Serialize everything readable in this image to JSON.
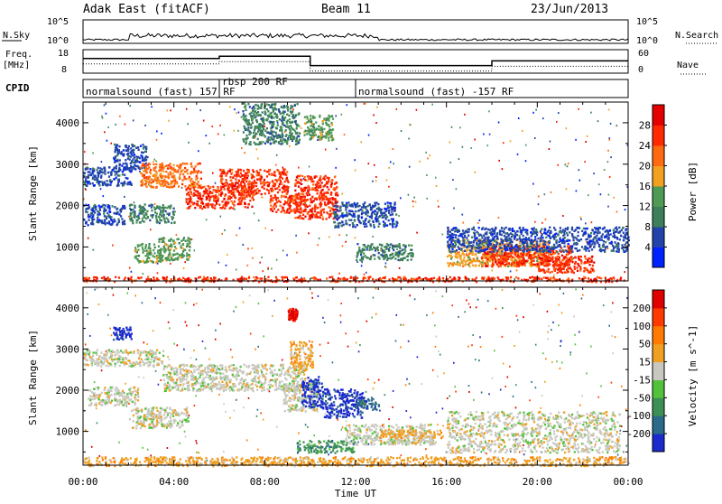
{
  "header": {
    "title": "Adak East (fitACF)",
    "beam": "Beam 11",
    "date": "23/Jun/2013"
  },
  "top_panels": {
    "nsky_label": "N.Sky",
    "nsky_ticks": [
      "10^5",
      "10^0"
    ],
    "nsearch_label": "N.Search",
    "nsearch_ticks": [
      "10^5",
      "10^0"
    ],
    "freq_label": "Freq.",
    "freq_unit": "[MHz]",
    "freq_ticks": [
      "18",
      "8"
    ],
    "nave_label": "Nave",
    "nave_ticks": [
      "60",
      "0"
    ],
    "cpid_label": "CPID",
    "cpid_segments": [
      {
        "label": "normalsound (fast) 157 RF",
        "start_hour": 0,
        "end_hour": 6
      },
      {
        "label": "rbsp 200 RF",
        "start_hour": 6,
        "end_hour": 12
      },
      {
        "label": "normalsound (fast) -157 RF",
        "start_hour": 12,
        "end_hour": 24
      }
    ],
    "freq_steps": [
      {
        "start": 0,
        "end": 6,
        "mhz": 15
      },
      {
        "start": 6,
        "end": 10,
        "mhz": 16
      },
      {
        "start": 10,
        "end": 18,
        "mhz": 12
      },
      {
        "start": 18,
        "end": 24,
        "mhz": 14
      }
    ]
  },
  "chart_data": [
    {
      "type": "heatmap",
      "name": "power",
      "ylabel": "Slant Range [km]",
      "xlabel": "Time UT",
      "xlim_hours": [
        0,
        24
      ],
      "ylim_km": [
        180,
        4500
      ],
      "x_ticks": [
        "00:00",
        "04:00",
        "08:00",
        "12:00",
        "16:00",
        "20:00",
        "00:00"
      ],
      "y_ticks": [
        1000,
        2000,
        3000,
        4000
      ],
      "colorbar": {
        "label": "Power [dB]",
        "ticks": [
          "4",
          "8",
          "12",
          "16",
          "20",
          "24",
          "28"
        ],
        "colors": [
          "#0022ff",
          "#2244aa",
          "#3d7f5a",
          "#4f9a55",
          "#f2a020",
          "#ff6a10",
          "#ff2a00",
          "#e50000"
        ]
      },
      "regions": [
        {
          "t0": 0.0,
          "t1": 1.8,
          "r0": 1550,
          "r1": 2050,
          "level": 1
        },
        {
          "t0": 0.0,
          "t1": 2.2,
          "r0": 2500,
          "r1": 2950,
          "level": 1
        },
        {
          "t0": 1.3,
          "t1": 2.8,
          "r0": 2900,
          "r1": 3500,
          "level": 1
        },
        {
          "t0": 2.0,
          "t1": 4.0,
          "r0": 1600,
          "r1": 2050,
          "level": 2
        },
        {
          "t0": 2.2,
          "t1": 3.4,
          "r0": 650,
          "r1": 1100,
          "level": 3
        },
        {
          "t0": 3.3,
          "t1": 4.7,
          "r0": 700,
          "r1": 1250,
          "level": 3
        },
        {
          "t0": 2.5,
          "t1": 5.2,
          "r0": 2450,
          "r1": 3050,
          "level": 5
        },
        {
          "t0": 4.5,
          "t1": 7.5,
          "r0": 1950,
          "r1": 2500,
          "level": 6
        },
        {
          "t0": 6.0,
          "t1": 9.0,
          "r0": 2300,
          "r1": 2900,
          "level": 6
        },
        {
          "t0": 8.2,
          "t1": 9.6,
          "r0": 1850,
          "r1": 2300,
          "level": 6
        },
        {
          "t0": 9.3,
          "t1": 11.2,
          "r0": 1700,
          "r1": 2750,
          "level": 6
        },
        {
          "t0": 9.7,
          "t1": 11.0,
          "r0": 3600,
          "r1": 4200,
          "level": 3
        },
        {
          "t0": 7.0,
          "t1": 9.5,
          "r0": 3500,
          "r1": 4500,
          "level": 2
        },
        {
          "t0": 11.0,
          "t1": 13.8,
          "r0": 1500,
          "r1": 2100,
          "level": 1
        },
        {
          "t0": 12.0,
          "t1": 14.5,
          "r0": 700,
          "r1": 1100,
          "level": 2
        },
        {
          "t0": 16.0,
          "t1": 20.5,
          "r0": 550,
          "r1": 1200,
          "level": 4
        },
        {
          "t0": 17.5,
          "t1": 21.5,
          "r0": 550,
          "r1": 1050,
          "level": 6
        },
        {
          "t0": 20.0,
          "t1": 22.5,
          "r0": 400,
          "r1": 800,
          "level": 6
        },
        {
          "t0": 16.0,
          "t1": 24.0,
          "r0": 900,
          "r1": 1500,
          "level": 1
        },
        {
          "t0": 0.0,
          "t1": 24.0,
          "r0": 180,
          "r1": 300,
          "level": 6
        }
      ]
    },
    {
      "type": "heatmap",
      "name": "velocity",
      "ylabel": "Slant Range [km]",
      "xlabel": "Time UT",
      "xlim_hours": [
        0,
        24
      ],
      "ylim_km": [
        180,
        4500
      ],
      "x_ticks": [
        "00:00",
        "04:00",
        "08:00",
        "12:00",
        "16:00",
        "20:00",
        "00:00"
      ],
      "y_ticks": [
        1000,
        2000,
        3000,
        4000
      ],
      "colorbar": {
        "label": "Velocity [m s^-1]",
        "ticks": [
          "200",
          "100",
          "50",
          "15",
          "-15",
          "-50",
          "-100",
          "-200"
        ],
        "colors": [
          "#1a2acc",
          "#2c6a8a",
          "#3c8f55",
          "#52c23a",
          "#c8c8c0",
          "#f0a020",
          "#ff7a00",
          "#ff3a00",
          "#e00000"
        ]
      },
      "regions": [
        {
          "t0": 0.0,
          "t1": 3.5,
          "r0": 2600,
          "r1": 3000,
          "level": 4
        },
        {
          "t0": 0.2,
          "t1": 2.4,
          "r0": 1650,
          "r1": 2100,
          "level": 4
        },
        {
          "t0": 2.0,
          "t1": 4.6,
          "r0": 1100,
          "r1": 1600,
          "level": 4
        },
        {
          "t0": 3.5,
          "t1": 9.8,
          "r0": 2000,
          "r1": 2650,
          "level": 4
        },
        {
          "t0": 8.8,
          "t1": 10.3,
          "r0": 1500,
          "r1": 2200,
          "level": 4
        },
        {
          "t0": 1.3,
          "t1": 2.1,
          "r0": 3250,
          "r1": 3550,
          "level": 0
        },
        {
          "t0": 9.1,
          "t1": 10.1,
          "r0": 2500,
          "r1": 3200,
          "level": 5
        },
        {
          "t0": 9.6,
          "t1": 10.5,
          "r0": 1600,
          "r1": 2350,
          "level": 0
        },
        {
          "t0": 10.5,
          "t1": 12.3,
          "r0": 1350,
          "r1": 2050,
          "level": 0
        },
        {
          "t0": 12.0,
          "t1": 13.0,
          "r0": 1550,
          "r1": 1850,
          "level": 1
        },
        {
          "t0": 9.4,
          "t1": 12.0,
          "r0": 500,
          "r1": 800,
          "level": 2
        },
        {
          "t0": 11.5,
          "t1": 15.5,
          "r0": 700,
          "r1": 1200,
          "level": 4
        },
        {
          "t0": 13.0,
          "t1": 15.8,
          "r0": 850,
          "r1": 1050,
          "level": 5
        },
        {
          "t0": 16.0,
          "t1": 23.6,
          "r0": 500,
          "r1": 1500,
          "level": 4
        },
        {
          "t0": 9.0,
          "t1": 9.4,
          "r0": 3700,
          "r1": 4000,
          "level": 8
        },
        {
          "t0": 0.0,
          "t1": 24.0,
          "r0": 180,
          "r1": 400,
          "level": 5
        }
      ]
    }
  ]
}
